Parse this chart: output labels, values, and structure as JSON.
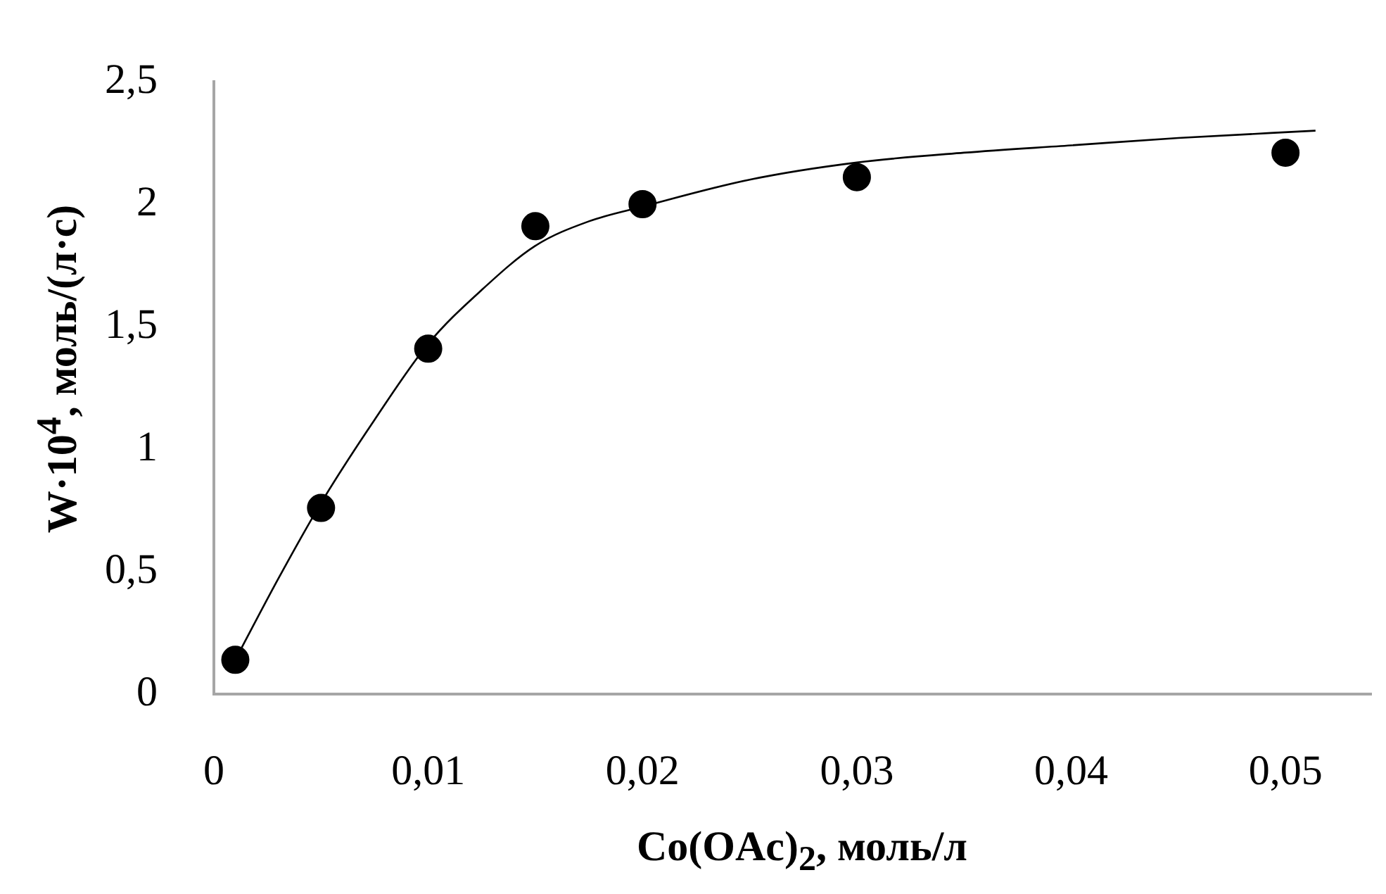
{
  "chart_data": {
    "type": "scatter",
    "xlabel": "Co(OAc)$_{2}$, моль/л",
    "ylabel": "W·10$^{4}$, моль/(л·с)",
    "xlim": [
      0,
      0.054
    ],
    "xticks": [
      0,
      {
        "value": 0.01,
        "label": "0,01"
      },
      {
        "value": 0.02,
        "label": "0,02"
      },
      {
        "value": 0.03,
        "label": "0,03"
      },
      {
        "value": 0.04,
        "label": "0,04"
      },
      {
        "value": 0.05,
        "label": "0,05"
      }
    ],
    "ylim": [
      0,
      2.5
    ],
    "yticks": [
      0,
      {
        "value": 0.5,
        "label": "0,5"
      },
      1,
      {
        "value": 1.5,
        "label": "1,5"
      },
      2,
      {
        "value": 2.5,
        "label": "2,5"
      }
    ],
    "grid": false,
    "legend": false,
    "series": [
      {
        "marker": "circle",
        "color": "#000000",
        "x": [
          0.001,
          0.005,
          0.01,
          0.015,
          0.02,
          0.03,
          0.05
        ],
        "values": [
          0.14,
          0.76,
          1.41,
          1.91,
          2.0,
          2.11,
          2.21
        ]
      },
      {
        "type": "line",
        "marker": "none",
        "color": "#000000",
        "x": [
          0.001,
          0.003,
          0.005,
          0.0075,
          0.01,
          0.0125,
          0.015,
          0.0175,
          0.02,
          0.025,
          0.03,
          0.035,
          0.04,
          0.045,
          0.0514
        ],
        "values": [
          0.14,
          0.47,
          0.78,
          1.12,
          1.43,
          1.65,
          1.83,
          1.93,
          1.99,
          2.1,
          2.17,
          2.21,
          2.24,
          2.27,
          2.3
        ]
      }
    ]
  }
}
